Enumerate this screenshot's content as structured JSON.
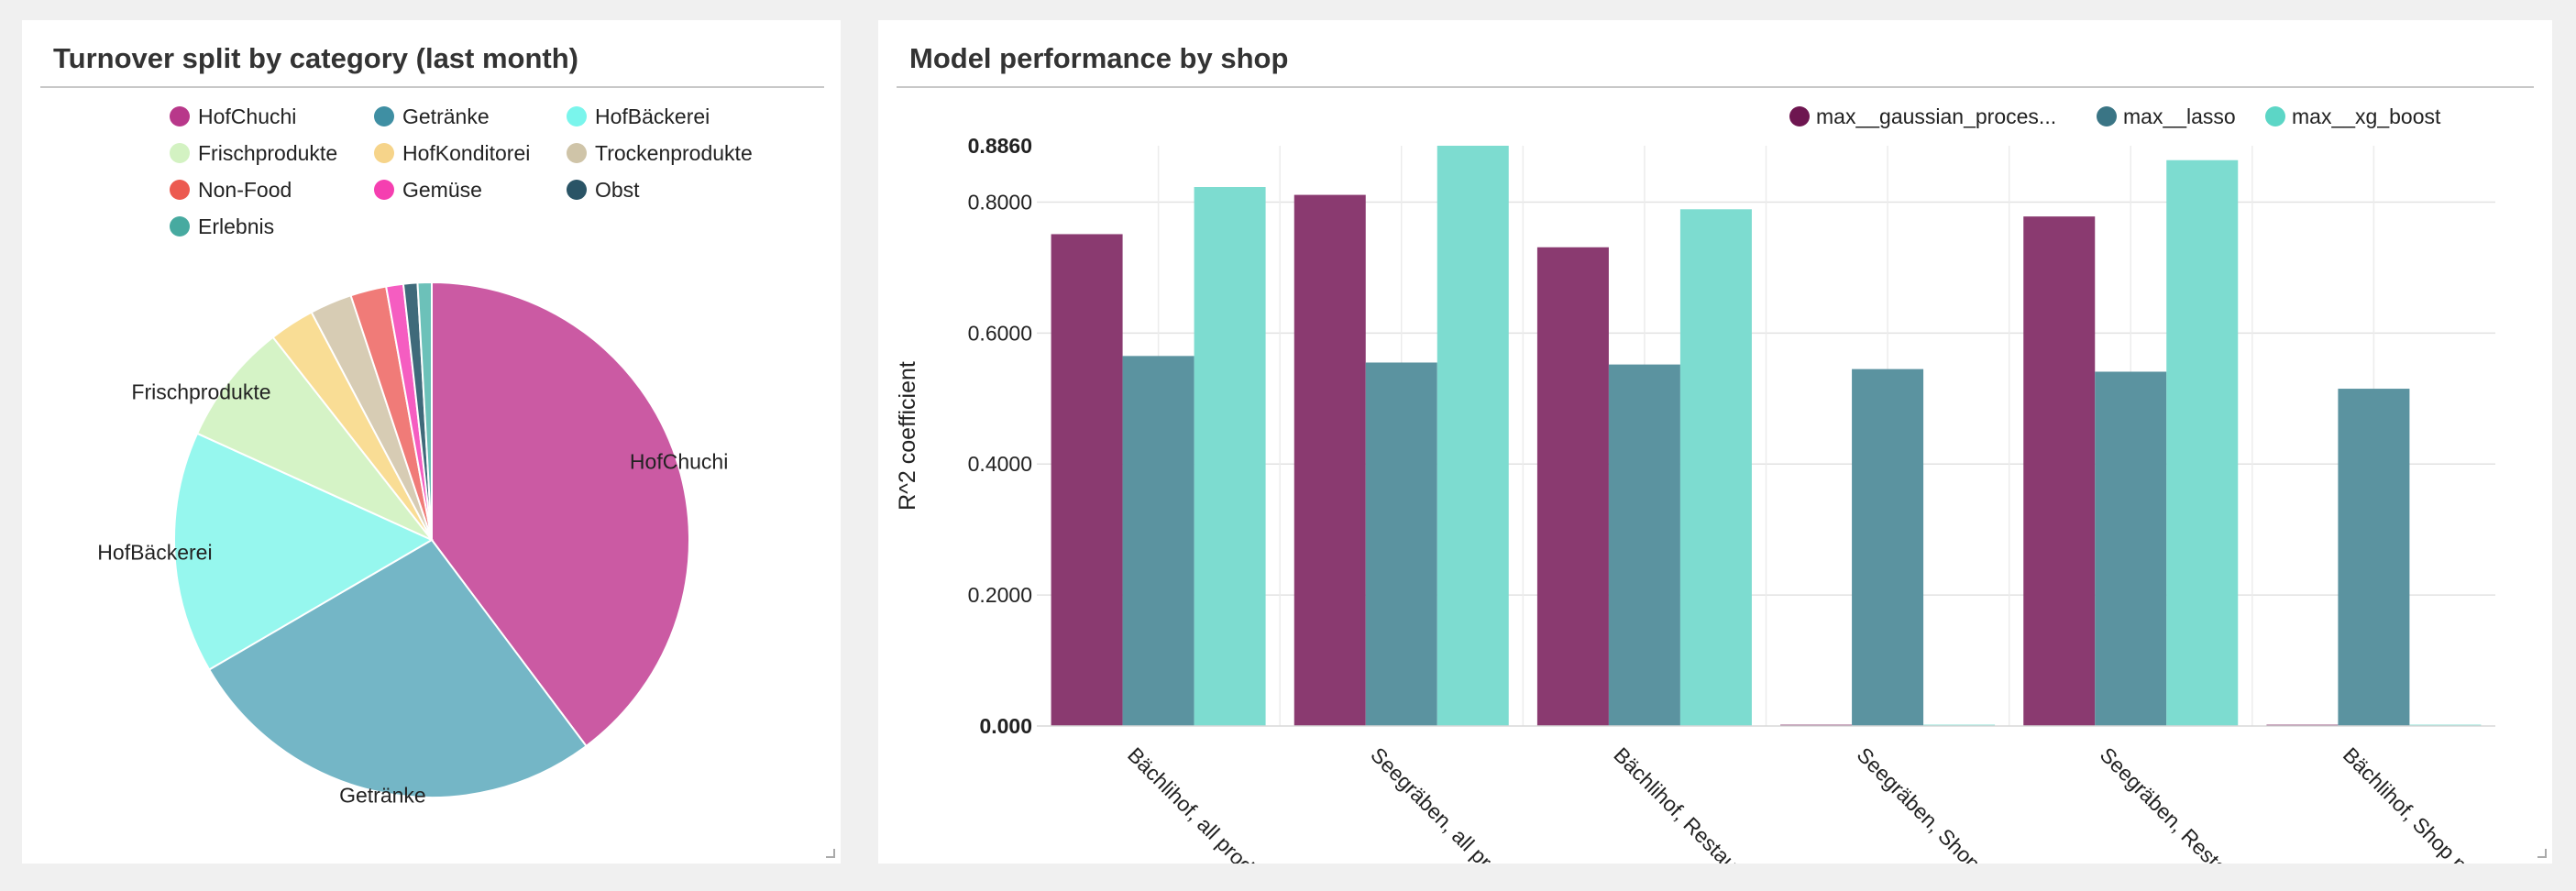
{
  "left_panel": {
    "title": "Turnover split by category (last month)"
  },
  "right_panel": {
    "title": "Model performance by shop"
  },
  "chart_data": [
    {
      "type": "pie",
      "categories": [
        "HofChuchi",
        "Getränke",
        "HofBäckerei",
        "Frischprodukte",
        "HofKonditorei",
        "Trockenprodukte",
        "Non-Food",
        "Gemüse",
        "Obst",
        "Erlebnis"
      ],
      "values": [
        40.6,
        27.4,
        15.5,
        7.8,
        2.9,
        2.7,
        2.3,
        1.1,
        0.9,
        0.9
      ],
      "colors": [
        "#cb5aa3",
        "#74b6c6",
        "#96f7ee",
        "#d5f3c6",
        "#f9dd95",
        "#d7ccb4",
        "#f07b78",
        "#f55dc1",
        "#3f6a7a",
        "#6cc1b9"
      ],
      "legend_colors": [
        "#b8388a",
        "#3f8fa3",
        "#7af5ec",
        "#d3f2c2",
        "#f6d48a",
        "#cfc4a8",
        "#ec5a50",
        "#f53fb0",
        "#2a5466",
        "#47aaa0"
      ],
      "slice_labels": [
        "HofChuchi",
        "Getränke",
        "HofBäckerei",
        "Frischprodukte",
        "",
        "",
        "",
        "",
        "",
        ""
      ],
      "legend_placement": "top"
    },
    {
      "type": "bar",
      "categories": [
        "Bächlihof, all products",
        "Seegräben, all products",
        "Bächlihof, Restaurant",
        "Seegräben, Shop",
        "Seegräben, Restaurant",
        "Bächlihof, Shop products"
      ],
      "tick_labels": [
        "Bächlihof, all prod",
        "Seegräben, all pro",
        "Bächlihof, Restaur",
        "Seegräben, Shop",
        "Seegräben, Resta",
        "Bächlihof, Shop p"
      ],
      "series": [
        {
          "name": "max__gaussian_proces...",
          "color": "#8a3a70",
          "values": [
            0.751,
            0.811,
            0.731,
            0.002,
            0.778,
            0.002
          ]
        },
        {
          "name": "max__lasso",
          "color": "#5b93a0",
          "values": [
            0.565,
            0.555,
            0.552,
            0.545,
            0.541,
            0.515
          ]
        },
        {
          "name": "max__xg_boost",
          "color": "#7ddcd0",
          "values": [
            0.823,
            0.886,
            0.789,
            0.002,
            0.864,
            0.002
          ]
        }
      ],
      "legend_colors": [
        "#6e1650",
        "#3a7585",
        "#5cd6c6"
      ],
      "ylabel": "R^2 coefficient",
      "ylim": [
        0,
        0.886
      ],
      "y_ticks": [
        0.0,
        0.2,
        0.4,
        0.6,
        0.8,
        0.886
      ],
      "y_tick_labels": [
        "0.000",
        "0.2000",
        "0.4000",
        "0.6000",
        "0.8000",
        "0.8860"
      ],
      "grid": true,
      "legend_placement": "top-right"
    }
  ]
}
